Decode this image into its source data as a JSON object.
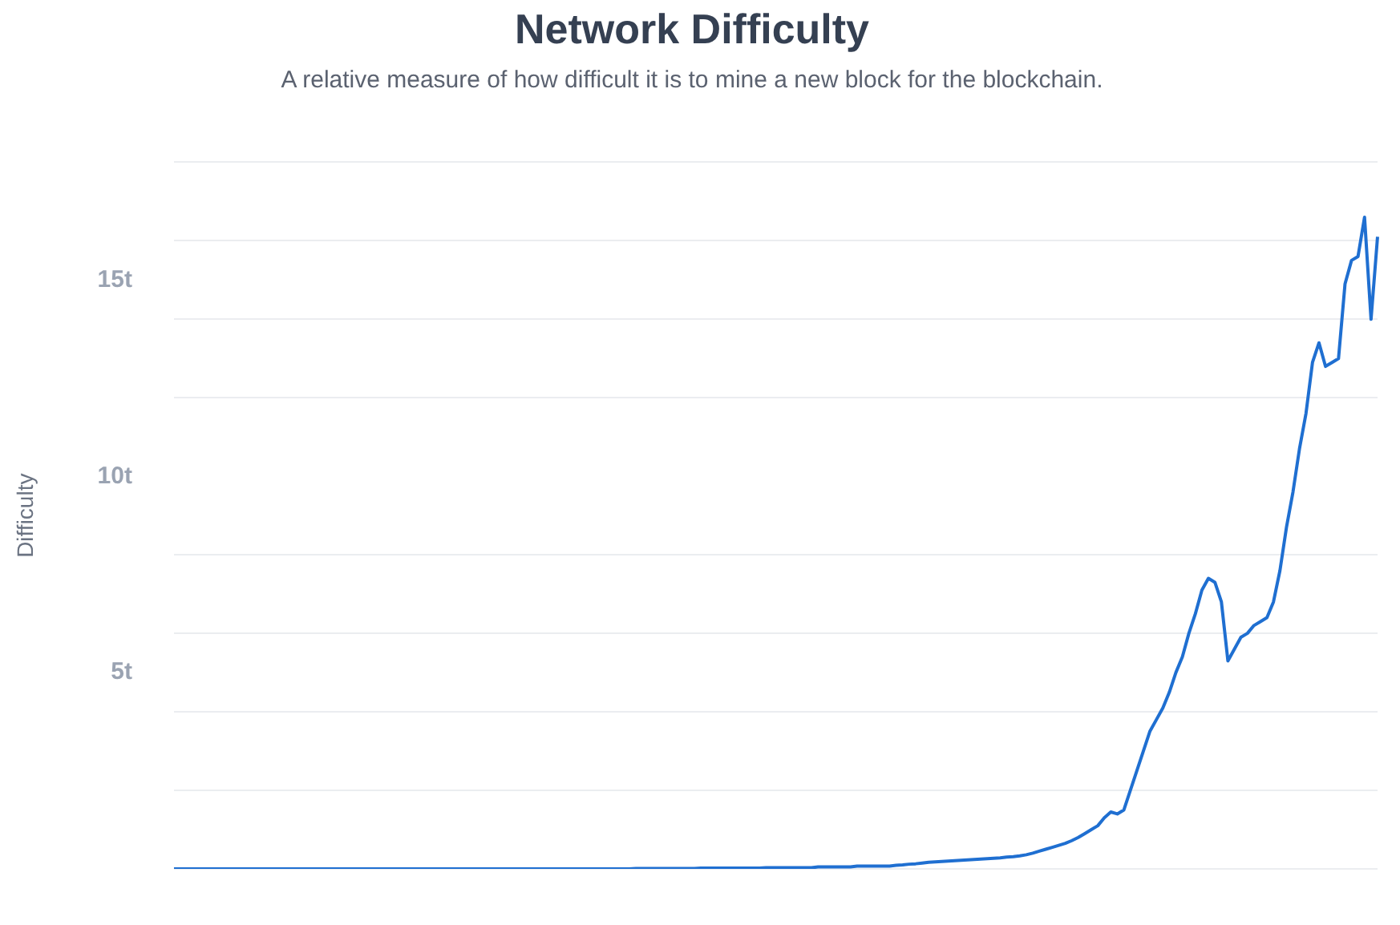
{
  "chart_data": {
    "type": "line",
    "title": "Network Difficulty",
    "subtitle": "A relative measure of how difficult it is to mine a new block for the blockchain.",
    "ylabel": "Difficulty",
    "categories": [
      null,
      null,
      null,
      null,
      null,
      null,
      null,
      null,
      null,
      null,
      null,
      null,
      null,
      null,
      null,
      null,
      null,
      null,
      null,
      null,
      null,
      null,
      null,
      null,
      null,
      null,
      null,
      null,
      null,
      null,
      null,
      null,
      null,
      null,
      null,
      null,
      null,
      null,
      null,
      null,
      null,
      null,
      null,
      null,
      null,
      null,
      null,
      null,
      null,
      null,
      null,
      null,
      null,
      null,
      null,
      null,
      null,
      null,
      null,
      null,
      null,
      null,
      null,
      null,
      null,
      null,
      null,
      null,
      null,
      null,
      null,
      null,
      null,
      null,
      null,
      null,
      null,
      null,
      null,
      null,
      null,
      null,
      null,
      null,
      null,
      null,
      null,
      null,
      null,
      null,
      null,
      null,
      null,
      null,
      null,
      null,
      null,
      null,
      null,
      null,
      null,
      null,
      null,
      null,
      null,
      null,
      null,
      null,
      null,
      null,
      null,
      null,
      null,
      null,
      null,
      null,
      null,
      null,
      null,
      null,
      null,
      null,
      null,
      null,
      null,
      null,
      null,
      null,
      null,
      null,
      null,
      null,
      null,
      null,
      null,
      null,
      null,
      null,
      null,
      null,
      null,
      null,
      null,
      null,
      null,
      null,
      null,
      null,
      null,
      null,
      null,
      null,
      null,
      null,
      null,
      null,
      null,
      null,
      null,
      null,
      null,
      null,
      null,
      null,
      null,
      null,
      null,
      null,
      null,
      null,
      null,
      null,
      null,
      null,
      null,
      null,
      null,
      null,
      null,
      null,
      null,
      null,
      null,
      null,
      null,
      null
    ],
    "series": [
      {
        "color": "#1f6fd1",
        "values": [
          0,
          0,
          0,
          0,
          0,
          0,
          0,
          0,
          0,
          0,
          0,
          0,
          0,
          0,
          0,
          0,
          0,
          0,
          0,
          0,
          0,
          0,
          0,
          0,
          0,
          0,
          0,
          0,
          0,
          0,
          0,
          0,
          0,
          0,
          0,
          0,
          0,
          0,
          0,
          0,
          0,
          0,
          0,
          0,
          0,
          0,
          0,
          0,
          0,
          0,
          0,
          0,
          0,
          0,
          0,
          0,
          0,
          0,
          0,
          0,
          0,
          0,
          0,
          0,
          0,
          0,
          0,
          0,
          0,
          0,
          0,
          0.01,
          0.01,
          0.01,
          0.01,
          0.01,
          0.01,
          0.01,
          0.01,
          0.01,
          0.01,
          0.02,
          0.02,
          0.02,
          0.02,
          0.02,
          0.02,
          0.02,
          0.02,
          0.02,
          0.02,
          0.03,
          0.03,
          0.03,
          0.03,
          0.03,
          0.03,
          0.03,
          0.03,
          0.05,
          0.05,
          0.05,
          0.05,
          0.05,
          0.05,
          0.07,
          0.07,
          0.07,
          0.07,
          0.07,
          0.07,
          0.09,
          0.1,
          0.12,
          0.13,
          0.15,
          0.17,
          0.18,
          0.19,
          0.2,
          0.21,
          0.22,
          0.23,
          0.24,
          0.25,
          0.26,
          0.27,
          0.28,
          0.3,
          0.31,
          0.33,
          0.36,
          0.4,
          0.45,
          0.5,
          0.55,
          0.6,
          0.65,
          0.72,
          0.8,
          0.9,
          1.0,
          1.1,
          1.3,
          1.45,
          1.4,
          1.5,
          2.0,
          2.5,
          3.0,
          3.5,
          3.8,
          4.1,
          4.5,
          5.0,
          5.4,
          6.0,
          6.5,
          7.1,
          7.4,
          7.3,
          6.8,
          5.3,
          5.6,
          5.9,
          6.0,
          6.2,
          6.3,
          6.4,
          6.8,
          7.6,
          8.7,
          9.6,
          10.7,
          11.6,
          12.9,
          13.4,
          12.8,
          12.9,
          13.0,
          14.9,
          15.5,
          15.6,
          16.6,
          14.0,
          16.1
        ]
      }
    ],
    "ylim": [
      0,
      18
    ],
    "yticks": [
      {
        "value": 0,
        "label": null
      },
      {
        "value": 2,
        "label": null
      },
      {
        "value": 4,
        "label": null
      },
      {
        "value": 5,
        "label": "5t"
      },
      {
        "value": 6,
        "label": null
      },
      {
        "value": 8,
        "label": null
      },
      {
        "value": 10,
        "label": "10t"
      },
      {
        "value": 12,
        "label": null
      },
      {
        "value": 14,
        "label": null
      },
      {
        "value": 15,
        "label": "15t"
      },
      {
        "value": 16,
        "label": null
      },
      {
        "value": 18,
        "label": null
      }
    ],
    "grid": "y",
    "marker": "none",
    "line_style": "solid",
    "legend": false
  }
}
